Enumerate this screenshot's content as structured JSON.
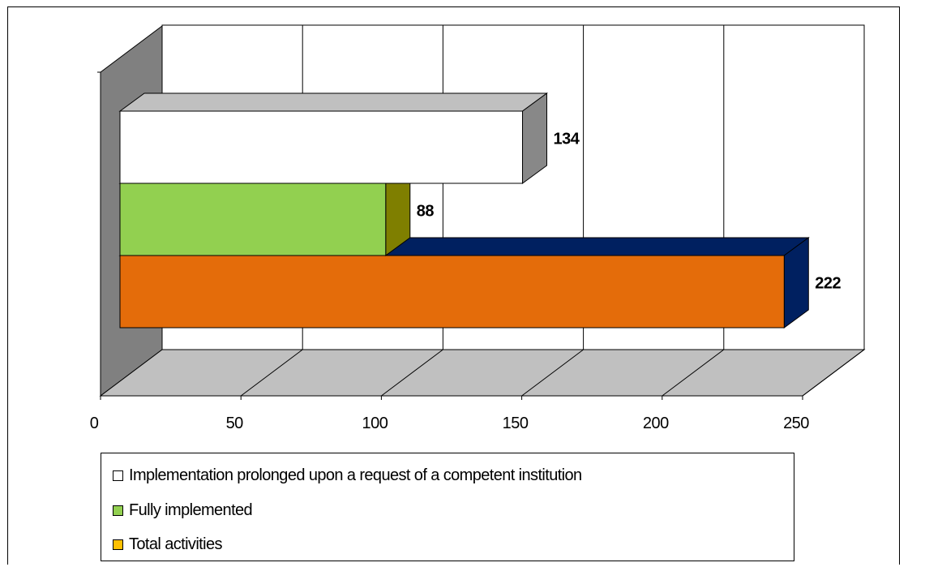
{
  "chart_data": {
    "type": "bar",
    "orientation": "horizontal",
    "three_d": true,
    "x_ticks": [
      "0",
      "50",
      "100",
      "150",
      "200",
      "250"
    ],
    "xlim": [
      0,
      250
    ],
    "grid": true,
    "legend_position": "bottom",
    "series": [
      {
        "name": "Implementation prolonged upon a request of a competent institution",
        "value": 134,
        "label": "134",
        "color": "#ffffff",
        "side_color": "#888888",
        "top_color": "#c0c0c0"
      },
      {
        "name": "Fully implemented",
        "value": 88,
        "label": "88",
        "color": "#92d050",
        "side_color": "#7f7f00",
        "top_color": "#6f8f2f"
      },
      {
        "name": "Total activities",
        "value": 222,
        "label": "222",
        "color": "#e46c0a",
        "side_color": "#002060",
        "top_color": "#002060"
      }
    ],
    "legend": [
      {
        "label": "Implementation prolonged upon a request of a competent institution",
        "swatch_color": "#ffffff"
      },
      {
        "label": "Fully implemented",
        "swatch_color": "#92d050"
      },
      {
        "label": "Total activities",
        "swatch_color": "#ffc000"
      }
    ]
  }
}
